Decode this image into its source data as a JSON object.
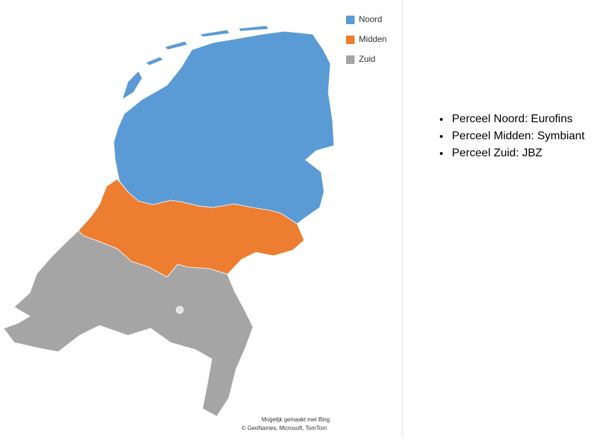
{
  "legend": [
    {
      "label": "Noord",
      "color": "#5b9bd5"
    },
    {
      "label": "Midden",
      "color": "#ed7d31"
    },
    {
      "label": "Zuid",
      "color": "#a5a5a5"
    }
  ],
  "attribution": [
    "Mogelijk gemaakt met Bing",
    "© GeoNames, Microsoft, TomTom"
  ],
  "list": [
    "Perceel Noord: Eurofins",
    "Perceel Midden: Symbiant",
    "Perceel Zuid: JBZ"
  ]
}
